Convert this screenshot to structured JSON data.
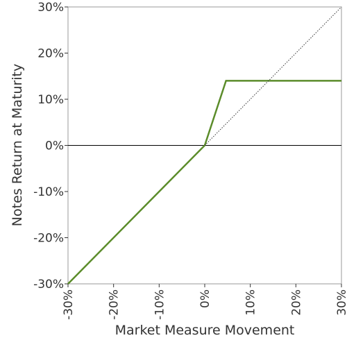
{
  "chart_data": {
    "type": "line",
    "xlabel": "Market Measure Movement",
    "ylabel": "Notes Return at Maturity",
    "xlim": [
      -30,
      30
    ],
    "ylim": [
      -30,
      30
    ],
    "xticks": [
      {
        "value": -30,
        "label": "-30%"
      },
      {
        "value": -20,
        "label": "-20%"
      },
      {
        "value": -10,
        "label": "-10%"
      },
      {
        "value": 0,
        "label": "0%"
      },
      {
        "value": 10,
        "label": "10%"
      },
      {
        "value": 20,
        "label": "20%"
      },
      {
        "value": 30,
        "label": "30%"
      }
    ],
    "yticks": [
      {
        "value": -30,
        "label": "-30%"
      },
      {
        "value": -20,
        "label": "-20%"
      },
      {
        "value": -10,
        "label": "-10%"
      },
      {
        "value": 0,
        "label": "0%"
      },
      {
        "value": 10,
        "label": "10%"
      },
      {
        "value": 20,
        "label": "20%"
      },
      {
        "value": 30,
        "label": "30%"
      }
    ],
    "zero_line": true,
    "series": [
      {
        "color": "#5b8c2a",
        "style": "solid",
        "x": [
          -30,
          0,
          4.67,
          30
        ],
        "values": [
          -30,
          0,
          14,
          14
        ]
      },
      {
        "color": "#333333",
        "style": "dotted",
        "x": [
          0,
          30
        ],
        "values": [
          0,
          30
        ]
      }
    ]
  }
}
